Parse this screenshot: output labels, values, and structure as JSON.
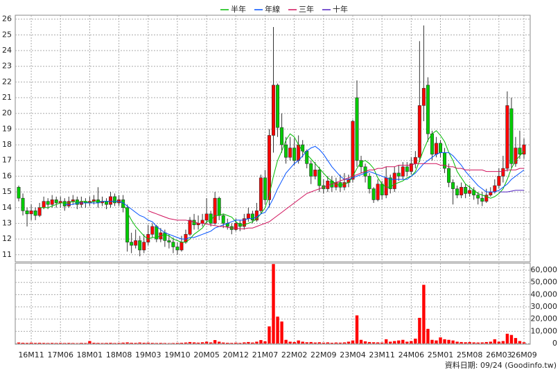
{
  "chart_data": {
    "type": "candlestick",
    "categories": [
      null,
      null,
      null,
      "16M11",
      null,
      null,
      null,
      null,
      null,
      null,
      "17M06",
      null,
      null,
      null,
      null,
      null,
      null,
      "18M01",
      null,
      null,
      null,
      null,
      null,
      null,
      "18M08",
      null,
      null,
      null,
      null,
      null,
      null,
      "19M03",
      null,
      null,
      null,
      null,
      null,
      null,
      "19M10",
      null,
      null,
      null,
      null,
      null,
      null,
      "20M05",
      null,
      null,
      null,
      null,
      null,
      null,
      "20M12",
      null,
      null,
      null,
      null,
      null,
      null,
      "21M07",
      null,
      null,
      null,
      null,
      null,
      null,
      "22M02",
      null,
      null,
      null,
      null,
      null,
      null,
      "22M09",
      null,
      null,
      null,
      null,
      null,
      null,
      "23M04",
      null,
      null,
      null,
      null,
      null,
      null,
      "23M11",
      null,
      null,
      null,
      null,
      null,
      null,
      "24M06",
      null,
      null,
      null,
      null,
      null,
      null,
      "25M01",
      null,
      null,
      null,
      null,
      null,
      null,
      "25M08",
      null,
      null,
      null,
      null,
      null,
      null,
      "26M03",
      null,
      null,
      null,
      null,
      null,
      "26M09"
    ],
    "open": [
      15.3,
      14.6,
      13.8,
      13.6,
      13.8,
      13.5,
      14.0,
      14.4,
      14.2,
      14.5,
      14.3,
      14.4,
      14.1,
      14.4,
      14.5,
      14.2,
      14.4,
      14.3,
      14.4,
      14.5,
      14.3,
      14.4,
      14.2,
      14.7,
      14.3,
      14.5,
      14.0,
      11.8,
      11.6,
      11.9,
      11.3,
      11.8,
      12.3,
      12.8,
      12.0,
      12.4,
      11.9,
      11.8,
      11.5,
      11.3,
      11.8,
      12.3,
      13.2,
      12.9,
      13.0,
      13.2,
      13.6,
      13.0,
      14.6,
      13.5,
      13.0,
      12.8,
      12.6,
      13.0,
      12.8,
      13.3,
      13.6,
      13.2,
      13.8,
      15.9,
      14.5,
      18.6,
      21.8,
      19.1,
      18.0,
      17.2,
      17.8,
      17.0,
      18.0,
      17.6,
      16.8,
      16.0,
      16.4,
      15.4,
      15.2,
      15.7,
      15.3,
      15.6,
      15.3,
      15.6,
      15.8,
      21.0,
      17.0,
      16.6,
      16.0,
      15.2,
      14.5,
      15.5,
      14.8,
      15.9,
      15.2,
      16.2,
      16.0,
      16.6,
      16.3,
      16.8,
      17.2,
      20.5,
      21.8,
      18.7,
      17.4,
      18.1,
      17.5,
      16.5,
      15.6,
      15.2,
      14.8,
      15.3,
      14.9,
      15.1,
      14.8,
      14.6,
      14.4,
      14.8,
      15.0,
      15.4,
      16.0,
      16.5,
      20.3,
      16.8,
      17.8,
      17.4
    ],
    "high": [
      15.4,
      14.9,
      14.0,
      14.2,
      14.0,
      14.3,
      14.7,
      14.6,
      14.8,
      14.7,
      14.7,
      14.6,
      14.7,
      14.8,
      14.7,
      14.7,
      14.6,
      14.7,
      14.8,
      15.3,
      14.7,
      14.6,
      15.0,
      14.9,
      14.8,
      14.8,
      14.2,
      12.4,
      12.6,
      12.2,
      12.3,
      12.9,
      13.0,
      12.9,
      12.7,
      12.6,
      12.3,
      12.1,
      11.8,
      12.2,
      12.6,
      13.4,
      13.6,
      13.5,
      13.6,
      14.6,
      13.8,
      15.0,
      14.7,
      13.6,
      13.3,
      13.0,
      13.3,
      13.2,
      13.6,
      14.0,
      13.8,
      14.3,
      16.1,
      16.4,
      19.0,
      25.5,
      21.9,
      20.0,
      18.5,
      18.5,
      18.4,
      18.6,
      18.3,
      17.7,
      17.0,
      16.9,
      16.6,
      15.8,
      16.0,
      16.0,
      15.9,
      16.1,
      16.2,
      16.1,
      19.6,
      22.1,
      17.3,
      16.8,
      16.2,
      15.3,
      15.8,
      15.7,
      16.6,
      16.1,
      16.6,
      16.7,
      16.9,
      16.9,
      17.2,
      17.6,
      24.6,
      25.6,
      22.3,
      18.9,
      18.5,
      18.3,
      17.8,
      16.8,
      15.8,
      15.4,
      15.6,
      15.5,
      15.4,
      15.3,
      15.0,
      15.0,
      15.2,
      15.3,
      15.8,
      16.5,
      17.3,
      21.4,
      21.0,
      18.5,
      18.9,
      18.4
    ],
    "low": [
      14.4,
      13.5,
      12.8,
      13.2,
      13.2,
      13.4,
      13.9,
      13.9,
      14.0,
      14.0,
      14.0,
      13.8,
      14.0,
      14.2,
      13.9,
      14.0,
      14.0,
      14.1,
      14.2,
      14.0,
      14.1,
      13.9,
      14.0,
      14.1,
      14.1,
      13.7,
      11.2,
      11.1,
      11.4,
      10.9,
      11.1,
      11.6,
      12.1,
      11.8,
      11.8,
      11.5,
      11.4,
      11.1,
      11.0,
      11.2,
      11.7,
      12.2,
      12.6,
      12.6,
      12.8,
      13.0,
      12.8,
      12.9,
      13.2,
      12.7,
      12.6,
      12.3,
      12.5,
      12.5,
      12.6,
      13.1,
      13.0,
      13.1,
      13.6,
      14.2,
      14.0,
      17.5,
      18.5,
      17.5,
      16.8,
      17.0,
      16.7,
      16.8,
      17.2,
      16.5,
      15.5,
      15.8,
      15.0,
      14.9,
      15.0,
      15.0,
      15.1,
      15.0,
      15.1,
      15.3,
      15.6,
      16.6,
      16.2,
      15.6,
      14.9,
      14.3,
      14.4,
      14.5,
      14.6,
      14.9,
      15.0,
      15.7,
      15.8,
      16.0,
      16.1,
      16.5,
      16.9,
      19.5,
      18.2,
      17.0,
      17.2,
      17.2,
      16.2,
      15.3,
      14.2,
      14.6,
      14.6,
      14.6,
      14.7,
      14.5,
      14.2,
      14.1,
      14.3,
      14.7,
      14.9,
      15.2,
      15.6,
      16.3,
      16.5,
      16.6,
      17.1,
      17.1
    ],
    "close": [
      14.6,
      13.8,
      13.6,
      13.8,
      13.5,
      14.0,
      14.4,
      14.2,
      14.5,
      14.3,
      14.4,
      14.1,
      14.4,
      14.5,
      14.2,
      14.4,
      14.3,
      14.4,
      14.5,
      14.3,
      14.4,
      14.2,
      14.7,
      14.3,
      14.5,
      14.0,
      11.8,
      11.6,
      11.9,
      11.3,
      11.8,
      12.3,
      12.8,
      12.0,
      12.4,
      11.9,
      11.8,
      11.5,
      11.3,
      11.8,
      12.3,
      13.2,
      12.9,
      13.0,
      13.2,
      13.6,
      13.0,
      14.6,
      13.5,
      13.0,
      12.8,
      12.6,
      13.0,
      12.8,
      13.3,
      13.6,
      13.2,
      13.8,
      15.9,
      14.5,
      18.6,
      21.8,
      19.1,
      18.0,
      17.2,
      17.8,
      17.0,
      18.0,
      17.6,
      16.8,
      16.0,
      16.4,
      15.4,
      15.2,
      15.7,
      15.3,
      15.6,
      15.3,
      15.6,
      15.8,
      19.5,
      17.0,
      16.6,
      16.0,
      15.2,
      14.5,
      15.5,
      14.8,
      15.9,
      15.2,
      16.2,
      16.0,
      16.6,
      16.3,
      16.8,
      17.2,
      20.5,
      21.6,
      18.7,
      17.4,
      18.1,
      17.5,
      16.5,
      15.6,
      15.2,
      14.8,
      15.3,
      14.9,
      15.1,
      14.8,
      14.6,
      14.4,
      14.8,
      15.0,
      15.4,
      16.0,
      16.5,
      20.5,
      16.8,
      17.8,
      17.4,
      18.0
    ],
    "volume": [
      800,
      600,
      500,
      700,
      500,
      600,
      500,
      400,
      500,
      400,
      500,
      400,
      500,
      400,
      300,
      500,
      400,
      2000,
      600,
      500,
      400,
      500,
      600,
      400,
      500,
      700,
      900,
      600,
      500,
      800,
      600,
      700,
      500,
      400,
      500,
      400,
      300,
      400,
      500,
      600,
      800,
      1200,
      900,
      700,
      1000,
      1500,
      900,
      2800,
      1500,
      800,
      600,
      500,
      700,
      500,
      900,
      1200,
      800,
      1500,
      2800,
      1800,
      14000,
      65000,
      22000,
      18000,
      3000,
      1500,
      1200,
      2500,
      1500,
      1000,
      1200,
      800,
      1000,
      700,
      900,
      600,
      800,
      700,
      900,
      1500,
      2500,
      23000,
      3000,
      1800,
      1200,
      1000,
      900,
      800,
      3500,
      1500,
      2000,
      2500,
      3000,
      1500,
      2000,
      4000,
      21000,
      48000,
      12000,
      3000,
      2500,
      5000,
      3500,
      3000,
      2500,
      1500,
      1200,
      1000,
      1200,
      900,
      800,
      900,
      1200,
      1500,
      3500,
      1500,
      2000,
      8000,
      7000,
      4500,
      2000,
      1000
    ],
    "up_color": "#ff0000",
    "down_color": "#00cc00",
    "volume_color": "#ff0000",
    "series": [
      {
        "name": "半年",
        "color": "#00bb00",
        "values": [
          null,
          null,
          null,
          null,
          null,
          14.0,
          14.0,
          14.0,
          14.1,
          14.2,
          14.3,
          14.3,
          14.3,
          14.4,
          14.3,
          14.4,
          14.4,
          14.3,
          14.4,
          14.4,
          14.4,
          14.4,
          14.4,
          14.4,
          14.4,
          14.3,
          13.7,
          13.2,
          12.8,
          12.5,
          12.2,
          12.0,
          12.1,
          12.1,
          12.2,
          12.3,
          12.2,
          12.0,
          11.9,
          11.8,
          11.8,
          12.0,
          12.3,
          12.5,
          12.7,
          13.1,
          13.2,
          13.5,
          13.5,
          13.6,
          13.5,
          13.4,
          13.1,
          12.9,
          12.9,
          13.0,
          13.1,
          13.3,
          13.6,
          14.0,
          14.8,
          16.0,
          17.0,
          17.6,
          18.3,
          18.7,
          18.5,
          18.0,
          17.6,
          17.4,
          17.1,
          16.8,
          16.5,
          16.2,
          15.9,
          15.7,
          15.5,
          15.4,
          15.5,
          15.6,
          16.0,
          16.5,
          16.9,
          17.0,
          16.8,
          16.5,
          15.9,
          15.5,
          15.3,
          15.3,
          15.5,
          15.6,
          15.7,
          15.9,
          16.0,
          16.3,
          17.0,
          17.7,
          18.3,
          18.7,
          18.9,
          18.6,
          18.2,
          17.5,
          17.0,
          16.3,
          15.9,
          15.5,
          15.3,
          15.1,
          14.9,
          14.8,
          14.7,
          14.6,
          14.7,
          14.9,
          15.2,
          15.8,
          16.5,
          17.0,
          17.3,
          17.6
        ]
      },
      {
        "name": "年線",
        "color": "#0050ff",
        "values": [
          null,
          null,
          null,
          null,
          null,
          null,
          null,
          null,
          null,
          null,
          null,
          14.2,
          14.2,
          14.2,
          14.3,
          14.3,
          14.3,
          14.3,
          14.3,
          14.3,
          14.4,
          14.4,
          14.4,
          14.4,
          14.4,
          14.3,
          14.1,
          13.9,
          13.7,
          13.5,
          13.4,
          13.2,
          13.1,
          12.8,
          12.6,
          12.4,
          12.3,
          12.2,
          12.1,
          12.0,
          12.0,
          12.1,
          12.1,
          12.2,
          12.3,
          12.4,
          12.5,
          12.7,
          12.8,
          12.9,
          13.0,
          13.1,
          13.2,
          13.2,
          13.2,
          13.3,
          13.3,
          13.4,
          13.6,
          13.7,
          14.1,
          14.6,
          15.2,
          15.7,
          16.2,
          16.5,
          16.8,
          17.0,
          17.3,
          17.6,
          17.8,
          17.9,
          17.7,
          17.4,
          17.0,
          16.6,
          16.3,
          16.0,
          15.8,
          15.8,
          15.9,
          16.0,
          16.1,
          16.2,
          16.3,
          16.2,
          16.1,
          16.0,
          15.9,
          15.8,
          15.8,
          15.8,
          15.8,
          15.8,
          16.0,
          16.2,
          16.5,
          16.8,
          17.0,
          17.2,
          17.4,
          17.5,
          17.5,
          17.5,
          17.3,
          17.0,
          16.7,
          16.3,
          16.0,
          15.7,
          15.4,
          15.2,
          15.0,
          15.0,
          15.0,
          15.1,
          15.3,
          15.5,
          15.8,
          16.0,
          16.2,
          16.4
        ]
      },
      {
        "name": "三年",
        "color": "#d0105a",
        "values": [
          null,
          null,
          null,
          null,
          null,
          null,
          null,
          null,
          null,
          null,
          null,
          null,
          null,
          null,
          null,
          null,
          null,
          null,
          null,
          null,
          null,
          null,
          null,
          null,
          null,
          null,
          null,
          null,
          null,
          null,
          null,
          13.8,
          13.7,
          13.6,
          13.5,
          13.4,
          13.3,
          13.25,
          13.2,
          13.2,
          13.2,
          13.15,
          13.1,
          13.0,
          13.0,
          12.95,
          12.9,
          12.85,
          12.8,
          12.8,
          12.75,
          12.7,
          12.7,
          12.65,
          12.65,
          12.7,
          12.7,
          12.8,
          12.9,
          13.0,
          13.1,
          13.3,
          13.5,
          13.7,
          13.9,
          14.1,
          14.3,
          14.5,
          14.7,
          14.9,
          15.0,
          15.1,
          15.2,
          15.3,
          15.4,
          15.5,
          15.6,
          15.7,
          15.8,
          15.9,
          16.0,
          16.1,
          16.2,
          16.3,
          16.4,
          16.4,
          16.5,
          16.5,
          16.6,
          16.6,
          16.6,
          16.7,
          16.7,
          16.7,
          16.7,
          16.8,
          16.8,
          16.8,
          16.8,
          16.8,
          16.8,
          16.7,
          16.7,
          16.6,
          16.6,
          16.5,
          16.5,
          16.4,
          16.4,
          16.4,
          16.4,
          16.4,
          16.3,
          16.3,
          16.3,
          16.3,
          16.3,
          16.4,
          16.4,
          16.4,
          16.5,
          16.5
        ]
      },
      {
        "name": "十年",
        "color": "#5020c0",
        "values": [
          null,
          null,
          null,
          null,
          null,
          null,
          null,
          null,
          null,
          null,
          null,
          null,
          null,
          null,
          null,
          null,
          null,
          null,
          null,
          null,
          null,
          null,
          null,
          null,
          null,
          null,
          null,
          null,
          null,
          null,
          null,
          null,
          null,
          null,
          null,
          null,
          null,
          null,
          null,
          null,
          null,
          null,
          null,
          null,
          null,
          null,
          null,
          null,
          null,
          null,
          null,
          null,
          null,
          null,
          null,
          null,
          null,
          null,
          null,
          null,
          null,
          null,
          null,
          null,
          null,
          null,
          null,
          null,
          null,
          null,
          null,
          null,
          null,
          null,
          null,
          null,
          null,
          null,
          null,
          null,
          null,
          null,
          null,
          null,
          null,
          null,
          null,
          null,
          null,
          null,
          null,
          null,
          null,
          null,
          null,
          null,
          null,
          null,
          null,
          null,
          null,
          null,
          null,
          null,
          null,
          null,
          null,
          null,
          null,
          null,
          null,
          null,
          null,
          null,
          null,
          15.0,
          15.0,
          15.0,
          15.05,
          15.1,
          15.1,
          15.1
        ]
      }
    ],
    "ylim": [
      10.55,
      26.25
    ],
    "yticks": [
      11,
      12,
      13,
      14,
      15,
      16,
      17,
      18,
      19,
      20,
      21,
      22,
      23,
      24,
      25,
      26
    ],
    "y2lim": [
      0,
      65700
    ],
    "y2ticks": [
      0,
      {
        "value": 10000,
        "label": "10,000"
      },
      {
        "value": 20000,
        "label": "20,000"
      },
      {
        "value": 30000,
        "label": "30,000"
      },
      {
        "value": 40000,
        "label": "40,000"
      },
      {
        "value": 50000,
        "label": "50,000"
      },
      {
        "value": 60000,
        "label": "60,000"
      }
    ],
    "grid": true,
    "footer": "資料日期: 09/24 (Goodinfo.tw)"
  }
}
